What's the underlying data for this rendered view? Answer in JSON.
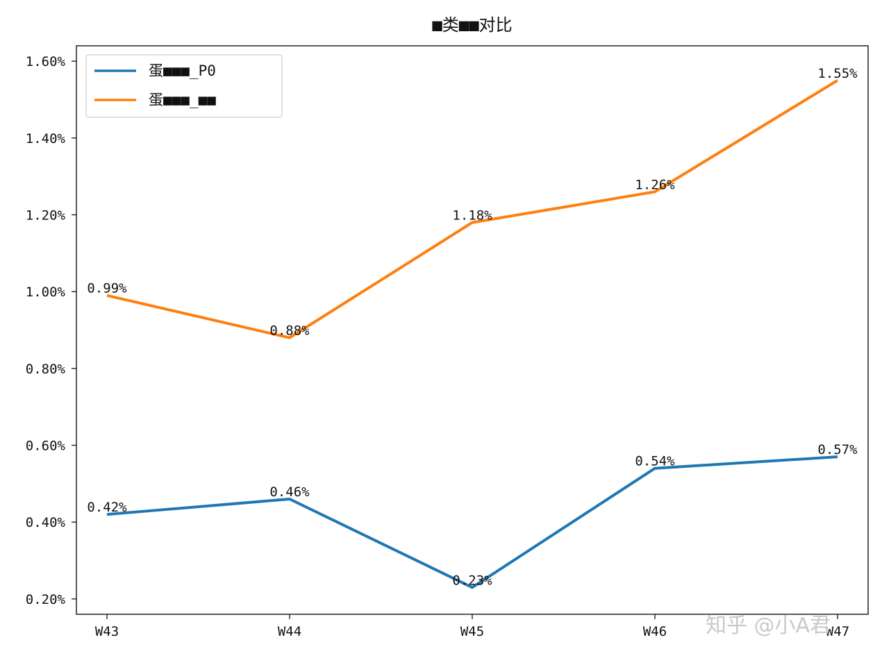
{
  "chart_data": {
    "type": "line",
    "title": "■类■■对比",
    "categories": [
      "W43",
      "W44",
      "W45",
      "W46",
      "W47"
    ],
    "series": [
      {
        "name": "蛋■■■_P0",
        "color": "#1f77b4",
        "values": [
          0.42,
          0.46,
          0.23,
          0.54,
          0.57
        ],
        "labels": [
          "0.42%",
          "0.46%",
          "0.23%",
          "0.54%",
          "0.57%"
        ]
      },
      {
        "name": "蛋■■■_■■",
        "color": "#ff7f0e",
        "values": [
          0.99,
          0.88,
          1.18,
          1.26,
          1.55
        ],
        "labels": [
          "0.99%",
          "0.88%",
          "1.18%",
          "1.26%",
          "1.55%"
        ]
      }
    ],
    "yticks": [
      "1.60%",
      "1.40%",
      "1.20%",
      "1.00%",
      "0.80%",
      "0.60%",
      "0.40%",
      "0.20%"
    ],
    "ytick_values": [
      1.6,
      1.4,
      1.2,
      1.0,
      0.8,
      0.6,
      0.4,
      0.2
    ],
    "ylim": [
      0.16,
      1.64
    ],
    "legend_position": "top-left",
    "grid": false
  },
  "watermark": {
    "text": "知乎 @小A君"
  }
}
